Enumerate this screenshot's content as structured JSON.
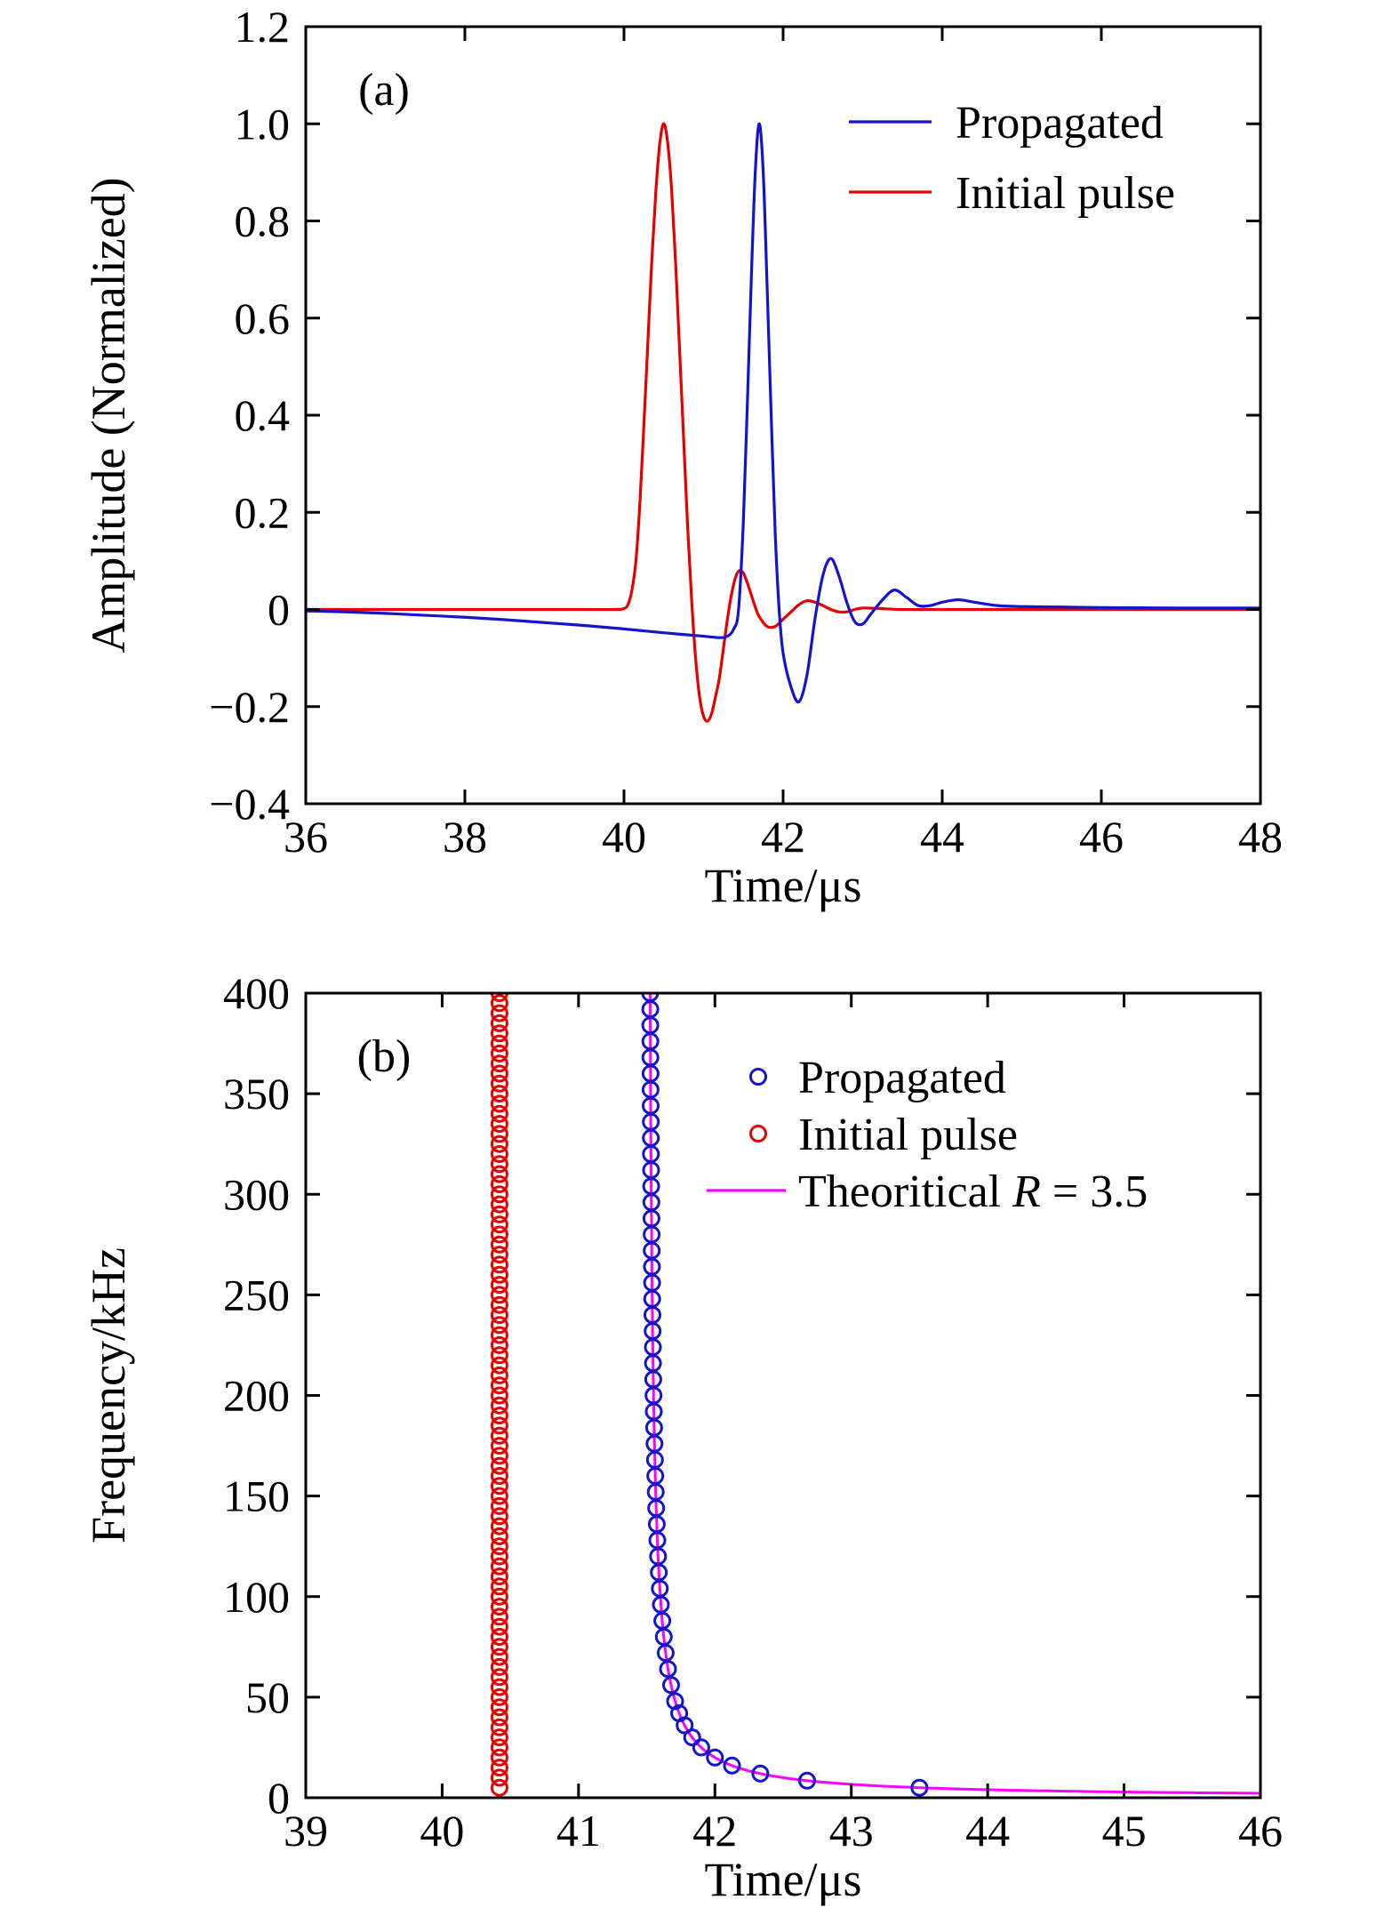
{
  "figure": {
    "background": "#ffffff",
    "axis_color": "#000000"
  },
  "chart_data": [
    {
      "type": "line",
      "panel_tag": "(a)",
      "title": "",
      "xlabel": "Time/μs",
      "ylabel": "Amplitude (Normalized)",
      "xlim": [
        36,
        48
      ],
      "ylim": [
        -0.4,
        1.2
      ],
      "xticks": [
        36,
        38,
        40,
        42,
        44,
        46,
        48
      ],
      "xtick_labels": [
        "36",
        "38",
        "40",
        "42",
        "44",
        "46",
        "48"
      ],
      "yticks": [
        -0.4,
        -0.2,
        0,
        0.2,
        0.4,
        0.6,
        0.8,
        1,
        1.2
      ],
      "ytick_labels": [
        "−0.4",
        "−0.2",
        "0",
        "0.2",
        "0.4",
        "0.6",
        "0.8",
        "1.0",
        "1.2"
      ],
      "grid": false,
      "legend_position": "upper right",
      "series": [
        {
          "name": "Propagated",
          "color": "#1414cc",
          "style": "line",
          "points": [
            [
              36,
              -0.003
            ],
            [
              36.5,
              -0.005
            ],
            [
              37,
              -0.008
            ],
            [
              37.5,
              -0.012
            ],
            [
              38,
              -0.016
            ],
            [
              38.5,
              -0.021
            ],
            [
              39,
              -0.027
            ],
            [
              39.5,
              -0.033
            ],
            [
              40,
              -0.04
            ],
            [
              40.5,
              -0.048
            ],
            [
              41,
              -0.055
            ],
            [
              41.2,
              -0.058
            ],
            [
              41.3,
              -0.055
            ],
            [
              41.38,
              -0.04
            ],
            [
              41.44,
              0
            ],
            [
              41.5,
              0.18
            ],
            [
              41.55,
              0.42
            ],
            [
              41.6,
              0.68
            ],
            [
              41.65,
              0.9
            ],
            [
              41.7,
              1
            ],
            [
              41.75,
              0.9
            ],
            [
              41.8,
              0.66
            ],
            [
              41.85,
              0.4
            ],
            [
              41.9,
              0.16
            ],
            [
              41.95,
              0
            ],
            [
              42,
              -0.09
            ],
            [
              42.1,
              -0.16
            ],
            [
              42.2,
              -0.19
            ],
            [
              42.3,
              -0.135
            ],
            [
              42.4,
              -0.02
            ],
            [
              42.5,
              0.07
            ],
            [
              42.6,
              0.105
            ],
            [
              42.7,
              0.07
            ],
            [
              42.8,
              0.015
            ],
            [
              42.9,
              -0.025
            ],
            [
              43,
              -0.03
            ],
            [
              43.1,
              -0.01
            ],
            [
              43.25,
              0.02
            ],
            [
              43.4,
              0.04
            ],
            [
              43.55,
              0.025
            ],
            [
              43.7,
              0.008
            ],
            [
              43.85,
              0.008
            ],
            [
              44,
              0.015
            ],
            [
              44.2,
              0.02
            ],
            [
              44.4,
              0.015
            ],
            [
              44.7,
              0.008
            ],
            [
              45,
              0.006
            ],
            [
              45.5,
              0.005
            ],
            [
              46,
              0.004
            ],
            [
              47,
              0.003
            ],
            [
              48,
              0.003
            ]
          ]
        },
        {
          "name": "Initial pulse",
          "color": "#e60000",
          "style": "line",
          "points": [
            [
              36,
              0
            ],
            [
              37,
              0
            ],
            [
              38,
              0
            ],
            [
              39,
              0
            ],
            [
              39.5,
              0
            ],
            [
              39.9,
              0
            ],
            [
              40,
              0.002
            ],
            [
              40.05,
              0.01
            ],
            [
              40.1,
              0.04
            ],
            [
              40.15,
              0.1
            ],
            [
              40.2,
              0.22
            ],
            [
              40.25,
              0.38
            ],
            [
              40.3,
              0.55
            ],
            [
              40.35,
              0.72
            ],
            [
              40.4,
              0.86
            ],
            [
              40.45,
              0.96
            ],
            [
              40.5,
              1
            ],
            [
              40.55,
              0.96
            ],
            [
              40.6,
              0.86
            ],
            [
              40.65,
              0.71
            ],
            [
              40.7,
              0.53
            ],
            [
              40.75,
              0.35
            ],
            [
              40.8,
              0.17
            ],
            [
              40.85,
              0.02
            ],
            [
              40.9,
              -0.1
            ],
            [
              40.95,
              -0.18
            ],
            [
              41,
              -0.22
            ],
            [
              41.05,
              -0.23
            ],
            [
              41.1,
              -0.215
            ],
            [
              41.15,
              -0.18
            ],
            [
              41.2,
              -0.14
            ],
            [
              41.25,
              -0.08
            ],
            [
              41.3,
              -0.02
            ],
            [
              41.35,
              0.03
            ],
            [
              41.4,
              0.065
            ],
            [
              41.45,
              0.08
            ],
            [
              41.5,
              0.075
            ],
            [
              41.55,
              0.055
            ],
            [
              41.6,
              0.03
            ],
            [
              41.65,
              0.005
            ],
            [
              41.7,
              -0.015
            ],
            [
              41.8,
              -0.035
            ],
            [
              41.9,
              -0.035
            ],
            [
              42,
              -0.02
            ],
            [
              42.1,
              -0.005
            ],
            [
              42.2,
              0.01
            ],
            [
              42.3,
              0.018
            ],
            [
              42.4,
              0.015
            ],
            [
              42.5,
              0.008
            ],
            [
              42.6,
              0
            ],
            [
              42.7,
              -0.005
            ],
            [
              42.8,
              -0.005
            ],
            [
              42.9,
              0
            ],
            [
              43,
              0.003
            ],
            [
              43.2,
              0.002
            ],
            [
              43.5,
              0
            ],
            [
              44,
              0
            ],
            [
              45,
              0
            ],
            [
              46,
              0
            ],
            [
              47,
              0
            ],
            [
              48,
              0
            ]
          ]
        }
      ]
    },
    {
      "type": "scatter",
      "panel_tag": "(b)",
      "title": "",
      "xlabel": "Time/μs",
      "ylabel": "Frequency/kHz",
      "xlim": [
        39,
        46
      ],
      "ylim": [
        0,
        400
      ],
      "xticks": [
        39,
        40,
        41,
        42,
        43,
        44,
        45,
        46
      ],
      "xtick_labels": [
        "39",
        "40",
        "41",
        "42",
        "43",
        "44",
        "45",
        "46"
      ],
      "yticks": [
        0,
        50,
        100,
        150,
        200,
        250,
        300,
        350,
        400
      ],
      "ytick_labels": [
        "0",
        "50",
        "100",
        "150",
        "200",
        "250",
        "300",
        "350",
        "400"
      ],
      "grid": false,
      "legend_position": "upper right",
      "series": [
        {
          "name": "Propagated",
          "color": "#1414cc",
          "style": "scatter",
          "marker": "open-circle",
          "points": [
            [
              41.525,
              400
            ],
            [
              41.526,
              392
            ],
            [
              41.526,
              384
            ],
            [
              41.527,
              376
            ],
            [
              41.527,
              368
            ],
            [
              41.528,
              360
            ],
            [
              41.528,
              352
            ],
            [
              41.529,
              344
            ],
            [
              41.53,
              336
            ],
            [
              41.53,
              328
            ],
            [
              41.531,
              320
            ],
            [
              41.532,
              312
            ],
            [
              41.533,
              304
            ],
            [
              41.534,
              296
            ],
            [
              41.535,
              288
            ],
            [
              41.536,
              280
            ],
            [
              41.537,
              272
            ],
            [
              41.538,
              264
            ],
            [
              41.539,
              256
            ],
            [
              41.54,
              248
            ],
            [
              41.542,
              240
            ],
            [
              41.543,
              232
            ],
            [
              41.545,
              224
            ],
            [
              41.546,
              216
            ],
            [
              41.548,
              208
            ],
            [
              41.55,
              200
            ],
            [
              41.552,
              192
            ],
            [
              41.554,
              184
            ],
            [
              41.557,
              176
            ],
            [
              41.56,
              168
            ],
            [
              41.563,
              160
            ],
            [
              41.566,
              152
            ],
            [
              41.569,
              144
            ],
            [
              41.574,
              136
            ],
            [
              41.578,
              128
            ],
            [
              41.583,
              120
            ],
            [
              41.589,
              112
            ],
            [
              41.596,
              104
            ],
            [
              41.604,
              96
            ],
            [
              41.614,
              88
            ],
            [
              41.625,
              80
            ],
            [
              41.639,
              72
            ],
            [
              41.656,
              64
            ],
            [
              41.679,
              56
            ],
            [
              41.708,
              48
            ],
            [
              41.738,
              42
            ],
            [
              41.778,
              36
            ],
            [
              41.833,
              30
            ],
            [
              41.9,
              25
            ],
            [
              42,
              20
            ],
            [
              42.125,
              16
            ],
            [
              42.333,
              12
            ],
            [
              42.676,
              8.5
            ],
            [
              43.5,
              5
            ]
          ]
        },
        {
          "name": "Initial pulse",
          "color": "#e60000",
          "style": "scatter-column",
          "marker": "open-circle",
          "column": {
            "time": 40.42,
            "freq_min": 5,
            "freq_max": 400,
            "freq_step": 5
          }
        },
        {
          "name": "Theoritical R = 3.5",
          "name_parts": [
            {
              "t": "Theoritical ",
              "i": false
            },
            {
              "t": "R",
              "i": true
            },
            {
              "t": " = 3.5",
              "i": false
            }
          ],
          "color": "#ff00ff",
          "style": "curve",
          "curve": {
            "t0": 41.5,
            "c": 10,
            "f_max": 400,
            "f_min": 2.22
          },
          "R_value": 3.5
        }
      ]
    }
  ]
}
